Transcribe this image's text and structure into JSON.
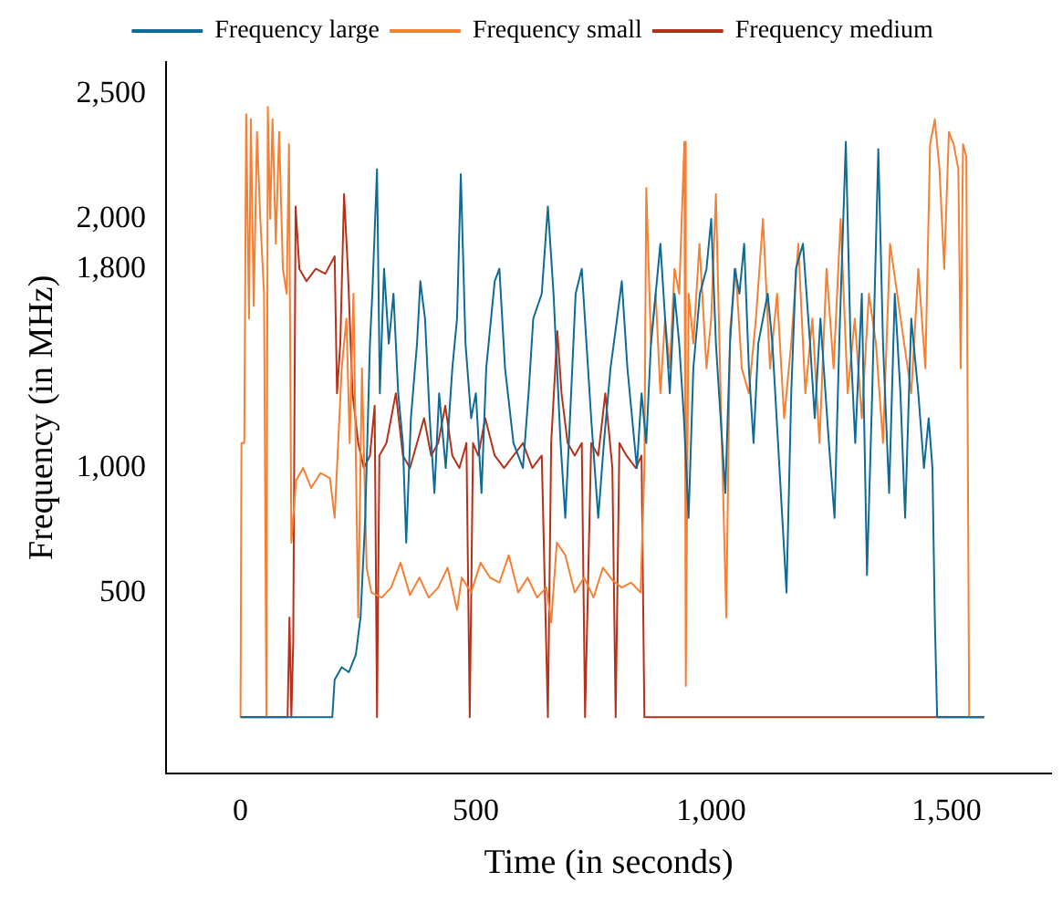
{
  "chart_data": {
    "type": "line",
    "xlabel": "Time (in seconds)",
    "ylabel": "Frequency (in MHz)",
    "xlim": [
      -158,
      1722
    ],
    "ylim": [
      -225,
      2630
    ],
    "xticks": [
      0,
      500,
      {
        "value": 1000,
        "label": "1,000"
      },
      {
        "value": 1500,
        "label": "1,500"
      }
    ],
    "yticks": [
      500,
      {
        "value": 1000,
        "label": "1,000"
      },
      {
        "value": 1800,
        "label": "1,800"
      },
      {
        "value": 2000,
        "label": "2,000"
      },
      {
        "value": 2500,
        "label": "2,500"
      }
    ],
    "grid": false,
    "legend": "top",
    "marker": "none",
    "line_style": "solid",
    "series": [
      {
        "name": "Frequency large",
        "color": "#0e6a96",
        "x": [
          0,
          195,
          200,
          215,
          230,
          245,
          255,
          265,
          275,
          280,
          290,
          296,
          305,
          315,
          325,
          335,
          345,
          352,
          362,
          375,
          382,
          392,
          402,
          412,
          422,
          436,
          450,
          460,
          468,
          478,
          490,
          500,
          512,
          522,
          540,
          550,
          562,
          580,
          600,
          612,
          622,
          640,
          653,
          665,
          680,
          690,
          700,
          712,
          725,
          735,
          745,
          760,
          772,
          786,
          800,
          810,
          822,
          832,
          842,
          852,
          862,
          872,
          882,
          892,
          902,
          912,
          922,
          932,
          942,
          952,
          962,
          976,
          990,
          1000,
          1010,
          1020,
          1030,
          1040,
          1050,
          1060,
          1070,
          1080,
          1090,
          1100,
          1120,
          1130,
          1145,
          1160,
          1170,
          1180,
          1195,
          1210,
          1220,
          1232,
          1250,
          1262,
          1272,
          1286,
          1296,
          1306,
          1320,
          1331,
          1342,
          1355,
          1365,
          1378,
          1390,
          1402,
          1412,
          1425,
          1440,
          1452,
          1462,
          1470,
          1475,
          1480,
          1580
        ],
        "values": [
          0,
          0,
          150,
          200,
          180,
          250,
          400,
          800,
          1500,
          1700,
          2200,
          1300,
          1800,
          1500,
          1700,
          1300,
          1100,
          700,
          1200,
          1500,
          1750,
          1600,
          1200,
          900,
          1300,
          1000,
          1400,
          1600,
          2180,
          1500,
          1200,
          1300,
          900,
          1400,
          1750,
          1800,
          1400,
          1100,
          1000,
          1300,
          1600,
          1700,
          2050,
          1700,
          1100,
          800,
          1200,
          1700,
          1800,
          1500,
          1200,
          800,
          1100,
          1400,
          1600,
          1750,
          1400,
          1200,
          1000,
          1300,
          1100,
          1500,
          1700,
          1900,
          1600,
          1300,
          1700,
          1500,
          1200,
          800,
          1400,
          1700,
          1800,
          2000,
          1500,
          1200,
          900,
          1500,
          1800,
          1700,
          1900,
          1400,
          1100,
          1500,
          1700,
          1500,
          1000,
          500,
          1300,
          1800,
          1900,
          1500,
          1200,
          1600,
          1100,
          800,
          1500,
          2310,
          1500,
          1100,
          1700,
          570,
          1300,
          2280,
          1500,
          900,
          1700,
          1300,
          800,
          1600,
          1300,
          1000,
          1200,
          1000,
          400,
          0,
          0
        ]
      },
      {
        "name": "Frequency small",
        "color": "#f57f32",
        "x": [
          0,
          2,
          8,
          12,
          18,
          22,
          28,
          35,
          42,
          50,
          55,
          58,
          63,
          68,
          75,
          82,
          90,
          98,
          103,
          108,
          118,
          133,
          150,
          170,
          190,
          200,
          205,
          215,
          225,
          232,
          240,
          250,
          258,
          268,
          278,
          300,
          320,
          340,
          360,
          380,
          400,
          420,
          440,
          460,
          470,
          490,
          510,
          530,
          550,
          570,
          590,
          610,
          630,
          650,
          660,
          672,
          690,
          710,
          730,
          750,
          770,
          790,
          810,
          830,
          850,
          858,
          862,
          872,
          882,
          892,
          902,
          912,
          922,
          932,
          943,
          946,
          952,
          962,
          975,
          990,
          1000,
          1010,
          1020,
          1032,
          1040,
          1052,
          1065,
          1080,
          1095,
          1110,
          1125,
          1140,
          1155,
          1170,
          1185,
          1200,
          1215,
          1230,
          1245,
          1260,
          1275,
          1290,
          1305,
          1320,
          1335,
          1350,
          1365,
          1380,
          1395,
          1410,
          1425,
          1440,
          1455,
          1465,
          1475,
          1485,
          1495,
          1505,
          1515,
          1525,
          1530,
          1535,
          1542,
          1548,
          1580
        ],
        "values": [
          0,
          1100,
          1100,
          2420,
          1600,
          2400,
          1650,
          2350,
          2000,
          1700,
          0,
          2450,
          2000,
          2400,
          1900,
          2350,
          1800,
          1700,
          2300,
          700,
          950,
          1000,
          920,
          980,
          960,
          800,
          1000,
          1400,
          1600,
          1100,
          1700,
          400,
          1400,
          600,
          500,
          480,
          520,
          620,
          490,
          560,
          480,
          520,
          600,
          430,
          560,
          500,
          620,
          560,
          540,
          650,
          500,
          560,
          480,
          520,
          380,
          700,
          650,
          500,
          560,
          480,
          600,
          550,
          520,
          540,
          500,
          1000,
          2125,
          1500,
          1700,
          1300,
          1600,
          1400,
          1800,
          1700,
          2310,
          125,
          1700,
          1500,
          1900,
          1400,
          1600,
          2100,
          1300,
          400,
          1550,
          1800,
          1400,
          1300,
          1600,
          2000,
          1400,
          1700,
          1200,
          1500,
          1900,
          1300,
          1600,
          1100,
          1800,
          1400,
          2000,
          1300,
          1600,
          1200,
          1700,
          1500,
          1100,
          1900,
          1700,
          1500,
          1300,
          1800,
          1400,
          2300,
          2400,
          2200,
          1800,
          2350,
          2300,
          2200,
          1400,
          2300,
          2250,
          0,
          0
        ]
      },
      {
        "name": "Frequency medium",
        "color": "#b5311a",
        "x": [
          0,
          100,
          104,
          108,
          112,
          117,
          125,
          140,
          160,
          180,
          200,
          205,
          212,
          220,
          228,
          238,
          244,
          250,
          262,
          275,
          285,
          290,
          295,
          310,
          330,
          345,
          360,
          375,
          390,
          405,
          420,
          435,
          450,
          465,
          480,
          487,
          494,
          505,
          520,
          540,
          560,
          580,
          600,
          620,
          640,
          653,
          660,
          673,
          682,
          695,
          710,
          725,
          732,
          745,
          760,
          775,
          790,
          797,
          805,
          820,
          840,
          852,
          858,
          870,
          1580
        ],
        "values": [
          0,
          0,
          400,
          0,
          300,
          2050,
          1800,
          1750,
          1800,
          1780,
          1850,
          1300,
          1500,
          2100,
          1800,
          1300,
          1200,
          1100,
          1000,
          1050,
          1250,
          0,
          1050,
          1100,
          1300,
          1050,
          1000,
          1100,
          1200,
          1050,
          1100,
          1250,
          1050,
          1000,
          1100,
          0,
          1100,
          1050,
          1200,
          1050,
          1000,
          1050,
          1100,
          1000,
          1050,
          0,
          1100,
          1550,
          1300,
          1100,
          1050,
          1100,
          0,
          1100,
          1050,
          1300,
          1000,
          0,
          1100,
          1050,
          1000,
          1050,
          0,
          0,
          0
        ]
      }
    ]
  }
}
